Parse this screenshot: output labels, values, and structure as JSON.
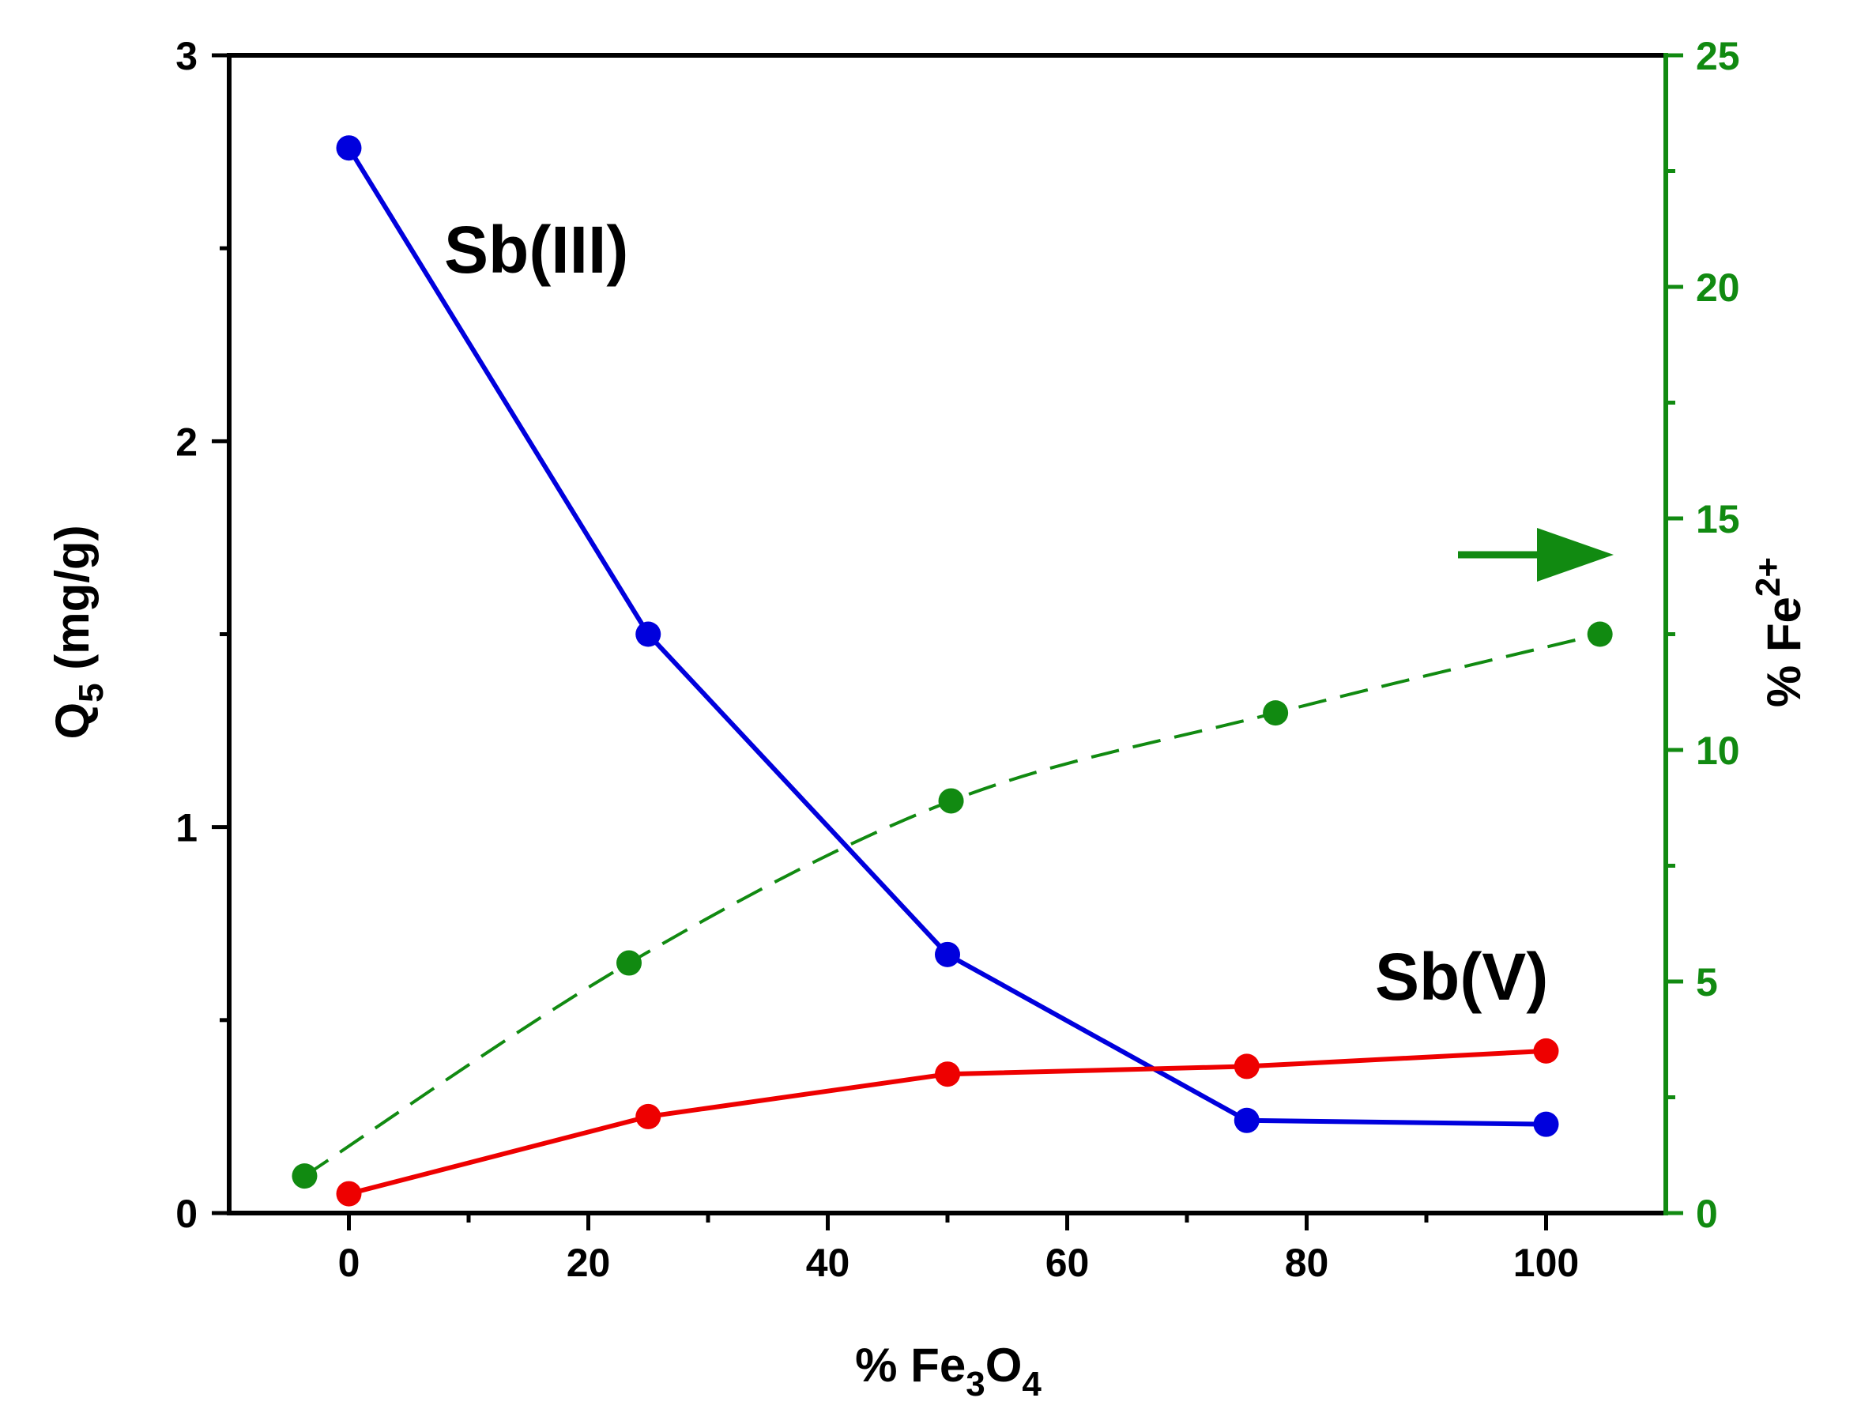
{
  "chart_data": {
    "type": "line",
    "xlabel": {
      "prefix": "% Fe",
      "sub1": "3",
      "mid": "O",
      "sub2": "4"
    },
    "ylabel_left": {
      "prefix": "Q",
      "sub": "5",
      "suffix": " (mg/g)"
    },
    "ylabel_right": {
      "prefix": "% Fe",
      "sup": "2+"
    },
    "xlim": [
      -10,
      110
    ],
    "ylim_left": [
      0,
      3
    ],
    "ylim_right": [
      0,
      25
    ],
    "x_ticks": [
      0,
      20,
      40,
      60,
      80,
      100
    ],
    "x_tick_labels": [
      "0",
      "20",
      "40",
      "60",
      "80",
      "100"
    ],
    "y_left_ticks": [
      0,
      1,
      2,
      3
    ],
    "y_left_tick_labels": [
      "0",
      "1",
      "2",
      "3"
    ],
    "y_right_ticks": [
      0,
      5,
      10,
      15,
      20,
      25
    ],
    "y_right_tick_labels": [
      "0",
      "5",
      "10",
      "15",
      "20",
      "25"
    ],
    "series": [
      {
        "name": "Sb(III)",
        "axis": "left",
        "color": "#0000dd",
        "style": "solid",
        "x": [
          0,
          25,
          50,
          75,
          100
        ],
        "y": [
          2.76,
          1.5,
          0.67,
          0.24,
          0.23
        ]
      },
      {
        "name": "Sb(V)",
        "axis": "left",
        "color": "#ee0000",
        "style": "solid",
        "x": [
          0,
          25,
          50,
          75,
          100
        ],
        "y": [
          0.05,
          0.25,
          0.36,
          0.38,
          0.42
        ]
      },
      {
        "name": "% Fe2+",
        "axis": "right",
        "color": "#118a11",
        "style": "dashed",
        "x": [
          -3.7,
          23.4,
          50.3,
          77.4,
          104.5
        ],
        "y": [
          0.8,
          5.4,
          8.9,
          10.8,
          12.5
        ]
      }
    ],
    "annotations": [
      {
        "text": "Sb(III)",
        "series": "Sb(III)"
      },
      {
        "text": "Sb(V)",
        "series": "Sb(V)"
      },
      {
        "type": "arrow",
        "direction": "right",
        "points_to": "right-axis",
        "color": "#118a11"
      }
    ]
  }
}
